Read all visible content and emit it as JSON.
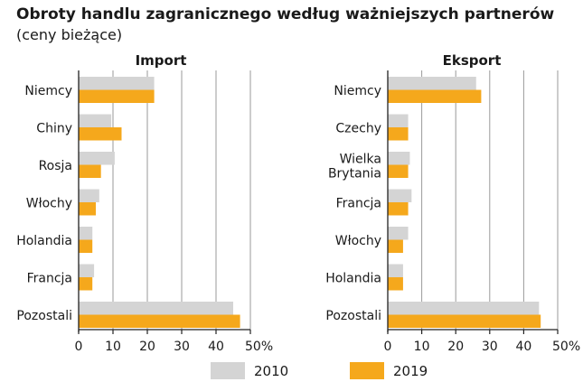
{
  "title": "Obroty handlu zagranicznego według ważniejszych partnerów",
  "subtitle": "(ceny bieżące)",
  "colors": {
    "2010": "#d4d4d4",
    "2019": "#f5a81c",
    "grid": "#9a9a9a",
    "axis": "#222222"
  },
  "chart_data": [
    {
      "type": "bar",
      "orientation": "horizontal",
      "title": "Import",
      "categories": [
        "Niemcy",
        "Chiny",
        "Rosja",
        "Włochy",
        "Holandia",
        "Francja",
        "Pozostali"
      ],
      "series": [
        {
          "name": "2010",
          "values": [
            22,
            9.5,
            10.5,
            6,
            4,
            4.5,
            45
          ]
        },
        {
          "name": "2019",
          "values": [
            22,
            12.5,
            6.5,
            5,
            4,
            4,
            47
          ]
        }
      ],
      "xlim": [
        0,
        50
      ],
      "xticks": [
        "0",
        "10",
        "20",
        "30",
        "40",
        "50%"
      ],
      "grid": true
    },
    {
      "type": "bar",
      "orientation": "horizontal",
      "title": "Eksport",
      "categories": [
        "Niemcy",
        "Czechy",
        "Wielka Brytania",
        "Francja",
        "Włochy",
        "Holandia",
        "Pozostali"
      ],
      "series": [
        {
          "name": "2010",
          "values": [
            26,
            6,
            6.5,
            7,
            6,
            4.5,
            44.5
          ]
        },
        {
          "name": "2019",
          "values": [
            27.5,
            6,
            6,
            6,
            4.5,
            4.5,
            45
          ]
        }
      ],
      "xlim": [
        0,
        50
      ],
      "xticks": [
        "0",
        "10",
        "20",
        "30",
        "40",
        "50%"
      ],
      "grid": true
    }
  ],
  "legend": {
    "placement": "bottom",
    "items": [
      {
        "label": "2010"
      },
      {
        "label": "2019"
      }
    ]
  }
}
